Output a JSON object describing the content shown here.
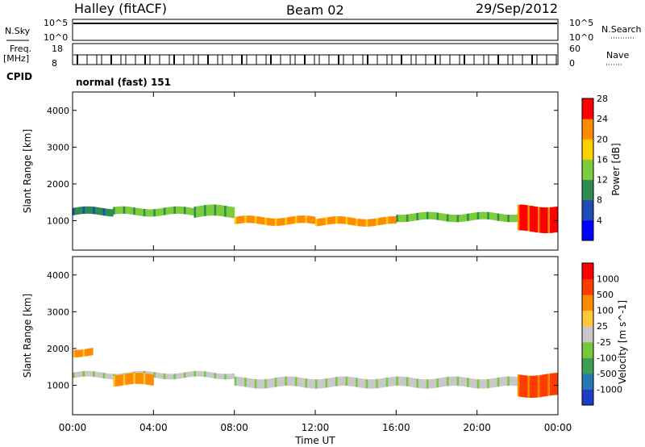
{
  "header": {
    "station": "Halley (fitACF)",
    "beam": "Beam 02",
    "date": "29/Sep/2012"
  },
  "top_panels": {
    "nsky_label": "N.Sky",
    "nsky_ticks": [
      "10^5",
      "10^0"
    ],
    "nsearch_label": "N.Search",
    "nsearch_ticks": [
      "10^5",
      "10^0"
    ],
    "freq_label": "Freq.",
    "freq_unit": "[MHz]",
    "freq_ticks": [
      "18",
      "8"
    ],
    "nave_label": "Nave",
    "nave_ticks": [
      "60",
      "0"
    ],
    "cpid_label": "CPID",
    "cpid_value": "normal (fast) 151"
  },
  "x_axis": {
    "label": "Time UT",
    "ticks": [
      "00:00",
      "04:00",
      "08:00",
      "12:00",
      "16:00",
      "20:00",
      "00:00"
    ]
  },
  "chart_data": [
    {
      "type": "heatmap",
      "panel": "power",
      "ylabel": "Slant Range [km]",
      "yticks": [
        "1000",
        "2000",
        "3000",
        "4000"
      ],
      "ylim": [
        200,
        4500
      ],
      "xlim_hours": [
        0,
        24
      ],
      "colorbar_label": "Power [dB]",
      "colorbar_ticks": [
        "4",
        "8",
        "12",
        "16",
        "20",
        "24",
        "28"
      ],
      "colorbar_colors": [
        "#0000ff",
        "#1e4bb4",
        "#2d8c50",
        "#7ecb3c",
        "#ffd000",
        "#ff8c00",
        "#ff0000"
      ],
      "bands": [
        {
          "t0": 0,
          "t1": 2,
          "r0": 1150,
          "r1": 1350,
          "level": 2
        },
        {
          "t0": 2,
          "t1": 6,
          "r0": 1150,
          "r1": 1350,
          "level": 3
        },
        {
          "t0": 6,
          "t1": 8,
          "r0": 1100,
          "r1": 1400,
          "level": 3
        },
        {
          "t0": 8,
          "t1": 12,
          "r0": 900,
          "r1": 1100,
          "level": 5
        },
        {
          "t0": 12,
          "t1": 16,
          "r0": 880,
          "r1": 1080,
          "level": 5
        },
        {
          "t0": 16,
          "t1": 22,
          "r0": 1000,
          "r1": 1200,
          "level": 3
        },
        {
          "t0": 22,
          "t1": 24,
          "r0": 700,
          "r1": 1400,
          "level": 6
        }
      ]
    },
    {
      "type": "heatmap",
      "panel": "velocity",
      "ylabel": "Slant Range [km]",
      "yticks": [
        "1000",
        "2000",
        "3000",
        "4000"
      ],
      "ylim": [
        200,
        4500
      ],
      "xlim_hours": [
        0,
        24
      ],
      "colorbar_label": "Velocity [m s^-1]",
      "colorbar_ticks": [
        "1000",
        "500",
        "100",
        "25",
        "-25",
        "-100",
        "-500",
        "-1000"
      ],
      "colorbar_colors": [
        "#1e3cc8",
        "#2878b4",
        "#3ca050",
        "#78c83c",
        "#c8c8c8",
        "#ffc83c",
        "#ff8c00",
        "#ff3c00",
        "#ff0000"
      ],
      "bands": [
        {
          "t0": 0,
          "t1": 8,
          "r0": 1200,
          "r1": 1350,
          "level": 4
        },
        {
          "t0": 8,
          "t1": 22,
          "r0": 950,
          "r1": 1200,
          "level": 4
        },
        {
          "t0": 0,
          "t1": 1,
          "r0": 1800,
          "r1": 2000,
          "level": 6
        },
        {
          "t0": 2,
          "t1": 4,
          "r0": 1000,
          "r1": 1300,
          "level": 6
        },
        {
          "t0": 22,
          "t1": 24,
          "r0": 700,
          "r1": 1300,
          "level": 7
        }
      ]
    }
  ]
}
